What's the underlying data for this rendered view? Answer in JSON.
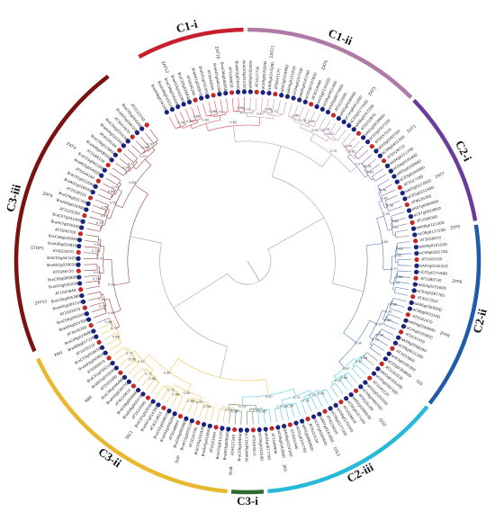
{
  "figure": {
    "clades": [
      {
        "label": "C1-i",
        "color": "#c8202a",
        "start": 332,
        "end": 359
      },
      {
        "label": "C1-ii",
        "color": "#b07aa6",
        "start": 0,
        "end": 45
      },
      {
        "label": "C2-i",
        "color": "#6a3d9a",
        "start": 46,
        "end": 80
      },
      {
        "label": "C2-ii",
        "color": "#1f5ba8",
        "start": 81,
        "end": 128
      },
      {
        "label": "C2-iii",
        "color": "#27b9d9",
        "start": 129,
        "end": 175
      },
      {
        "label": "C3-i",
        "color": "#2e6b2e",
        "start": 176,
        "end": 184
      },
      {
        "label": "C3-ii",
        "color": "#e8b830",
        "start": 185,
        "end": 245
      },
      {
        "label": "C3-iii",
        "color": "#7a1212",
        "start": 247,
        "end": 323
      }
    ],
    "marker_colors": {
      "brassica": "#1a237e",
      "arabidopsis": "#c62828"
    },
    "leaf_labels": [
      "BraA08g016100D",
      "BraA08g016110D",
      "BraC08g016420D",
      "BraA03g042080D",
      "BraC03g026890D",
      "AT5G04340",
      "BraA01g030870D",
      "BraC01g031050D",
      "AT3G46090",
      "BraA07g040180D",
      "BraC06g046950D",
      "AT5G59820",
      "BraA03g059430D",
      "BraC03g012320D",
      "BraA06g010290D",
      "AT1G27730",
      "BraC09g052920D",
      "BraA09g037420D",
      "AT5G43170",
      "BraA02g011690D",
      "BraA04g015320D",
      "BraC04g020770D",
      "BraA05g014110D",
      "BraC05g019700D",
      "AT3G19580",
      "BraA10g014420D",
      "BraC09g045140D",
      "BraA06g007700D",
      "AT1G10930",
      "BraA01g043890D",
      "BraCnng045120D",
      "BraC05g017700D",
      "BraA06g024720D",
      "AT5G10970",
      "BraA02g042890D",
      "BraC02g050710D",
      "AT5G57520",
      "BraA10g028370D",
      "BraC08g045130D",
      "AT2G28710",
      "BraA04g011170D",
      "BraC04g014540D",
      "BraA03g020840D",
      "BraC03g026400D",
      "AT2G17180",
      "BraA05g022390D",
      "BraC05g025140D",
      "AT4G35280",
      "BraA07g006490D",
      "BraC07g002380D",
      "AT1G68360",
      "BraA08g012130D",
      "BraC08g013720D",
      "AT3G58070",
      "BraA09g019320D",
      "BraC09g028170D",
      "AT5G03150",
      "BraA01g024030D",
      "BraC01g027160D",
      "AT1G80730",
      "BraA02g023160D",
      "BraC02g029770D",
      "AT4G17810",
      "BraA06g036920D",
      "BraC06g043310D",
      "AT5G61470",
      "BraA04g016090D",
      "BraCnng039580D",
      "AT2G37430",
      "BraA09g056820D",
      "BraC09g062130D",
      "AT3G53600",
      "BraA03g029530D",
      "BraC03g035880D",
      "AT1G02030",
      "BraA05g030520D",
      "BraC05g038230D",
      "AT2G45120",
      "BraA10g016520D",
      "BraC09g046470D",
      "AT5G25160",
      "BraA02g028650D",
      "BraC02g035710D",
      "AT1G26610",
      "BraA08g017050D",
      "BraC08g017720D",
      "AT4G26030",
      "BraA07g024180D",
      "BraC07g028540D",
      "AT3G23130",
      "BraA01g008980D",
      "BraC01g010170D",
      "AT2G01940",
      "BraA06g015230D",
      "BraC06g018390D",
      "AT1G49900",
      "BraA04g001770D",
      "BraC04g003250D",
      "AT5G03510",
      "BraA09g041170D",
      "BraC09g049840D",
      "AT4G27240",
      "BraA03g008920D",
      "BraC03g011370D",
      "AT2G41940",
      "BraA05g015840D",
      "BraC05g020440D",
      "AT1G34790",
      "BraA10g003510D",
      "BraC09g005880D",
      "AT5G48890",
      "BraA02g006280D",
      "BraC02g009970D",
      "AT3G13810",
      "BraA07g014390D",
      "BraC07g019540D",
      "AT1G14580",
      "BraA08g002470D",
      "BraC08g004090D",
      "AT4G16610",
      "BraA06g039770D",
      "BraC06g046490D",
      "AT2G02080",
      "BraA01g033240D",
      "BraC01g038210D",
      "AT5G60470",
      "BraA03g045850D",
      "BraC03g054650D",
      "AT1G55110",
      "BraA09g017220D",
      "BraC09g024980D",
      "AT3G45260",
      "BraA04g025300D",
      "BraC04g030260D",
      "AT2G02070",
      "BraA05g003110D",
      "BraC05g005380D",
      "AT1G03840",
      "BraA10g030250D",
      "BraC09g060800D",
      "AT5G66730",
      "BraA02g039030D",
      "BraC02g047420D",
      "AT4G02670",
      "BraA08g024810D",
      "BraC08g026940D",
      "AT3G50700",
      "BraA07g036300D",
      "BraC07g041400D",
      "AT1G25250",
      "BraA06g026900D",
      "BraC06g031760D",
      "AT2G38320",
      "BraA01g018500D",
      "BraC01g022640D",
      "AT5G44160",
      "BraA03g054020D",
      "BraC03g062200D",
      "AT1G68130",
      "BraA09g008550D",
      "BraC09g013860D",
      "AT4G39160",
      "BraA04g020340D",
      "BraC04g025430D",
      "AT3G57670",
      "BraA05g036720D",
      "BraC05g044200D",
      "AT2G23740"
    ],
    "extra_labels": [
      "ZAT12",
      "ZAT10",
      "ZAT11",
      "ZAT6",
      "ZAT5",
      "ZAT1",
      "ZAT7",
      "ZFP5",
      "ZFP6",
      "ZFP8",
      "GIS",
      "GIS2",
      "GIS3",
      "JAG",
      "NUB",
      "SUP",
      "TAC1",
      "RBE",
      "KNU",
      "ZFP11",
      "STOP1",
      "ZAT9",
      "ZAT4"
    ]
  }
}
